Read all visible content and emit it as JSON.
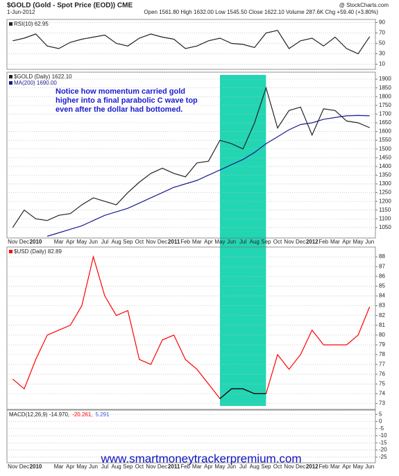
{
  "header": {
    "title": "$GOLD (Gold - Spot Price (EOD)) CME",
    "date": "1-Jun-2012",
    "source": "@ StockCharts.com",
    "quote": "Open 1561.80 High 1632.00 Low 1545.50 Close 1622.10 Volume 287.6K Chg +59.40 (+3.80%)"
  },
  "chart_data": [
    {
      "type": "line",
      "ylim": [
        0,
        96
      ],
      "yticks": [
        10,
        30,
        50,
        70,
        90
      ],
      "grid": true,
      "series": [
        {
          "name": "RSI(10) 62.95",
          "color": "#222222",
          "values": [
            55,
            60,
            68,
            45,
            40,
            52,
            58,
            62,
            66,
            50,
            45,
            60,
            68,
            62,
            58,
            40,
            45,
            55,
            60,
            50,
            48,
            42,
            70,
            75,
            40,
            55,
            60,
            45,
            62,
            40,
            30,
            62.95
          ]
        }
      ]
    },
    {
      "type": "line",
      "ylim": [
        990,
        1940
      ],
      "yticks": [
        1050,
        1100,
        1150,
        1200,
        1250,
        1300,
        1350,
        1400,
        1450,
        1500,
        1550,
        1600,
        1650,
        1700,
        1750,
        1800,
        1850,
        1900
      ],
      "grid": true,
      "categories": [
        "Nov",
        "Dec",
        "2010",
        null,
        "Mar",
        "Apr",
        "May",
        "Jun",
        "Jul",
        "Aug",
        "Sep",
        "Oct",
        "Nov",
        "Dec",
        "2011",
        "Feb",
        "Mar",
        "Apr",
        "May",
        "Jun",
        "Jul",
        "Aug",
        "Sep",
        "Oct",
        "Nov",
        "Dec",
        "2012",
        "Feb",
        "Mar",
        "Apr",
        "May",
        "Jun"
      ],
      "highlight": {
        "from": 18,
        "to": 22,
        "color": "#22d6b4"
      },
      "annotation": [
        "Notice how momentum carried gold",
        "higher into a final parabolic C wave top",
        "even after the dollar had bottomed."
      ],
      "series": [
        {
          "name": "$GOLD (Daily) 1622.10",
          "color": "#222222",
          "values": [
            1050,
            1150,
            1100,
            1090,
            1120,
            1130,
            1180,
            1220,
            1200,
            1180,
            1250,
            1310,
            1360,
            1390,
            1360,
            1340,
            1420,
            1430,
            1550,
            1530,
            1500,
            1650,
            1850,
            1620,
            1720,
            1740,
            1580,
            1730,
            1720,
            1660,
            1650,
            1622
          ]
        },
        {
          "name": "MA(200) 1690.00",
          "color": "#1a1a8c",
          "values": [
            null,
            null,
            null,
            1000,
            1020,
            1040,
            1060,
            1090,
            1120,
            1140,
            1160,
            1190,
            1220,
            1250,
            1280,
            1300,
            1320,
            1350,
            1380,
            1410,
            1440,
            1480,
            1530,
            1570,
            1610,
            1640,
            1650,
            1670,
            1680,
            1690,
            1692,
            1690
          ]
        }
      ]
    },
    {
      "type": "line",
      "ylim": [
        72.4,
        89
      ],
      "yticks": [
        73,
        74,
        75,
        76,
        77,
        78,
        79,
        80,
        81,
        82,
        83,
        84,
        85,
        86,
        87,
        88
      ],
      "grid": true,
      "highlight_color": "#000000",
      "series": [
        {
          "name": "$USD (Daily) 82.89",
          "color": "#ff0000",
          "values": [
            75.5,
            74.5,
            77.5,
            80,
            80.5,
            81,
            83,
            88,
            84,
            82,
            82.5,
            77.5,
            77,
            79.5,
            80,
            77.5,
            76.5,
            75,
            73.5,
            74.5,
            74.5,
            74,
            74,
            78,
            76.5,
            78,
            80.5,
            79,
            79,
            79,
            80,
            82.89
          ]
        }
      ]
    },
    {
      "type": "line",
      "ylim": [
        -29,
        8
      ],
      "yticks": [
        5,
        0,
        -5,
        -10,
        -15,
        -20,
        -25
      ],
      "grid": true,
      "legend": [
        {
          "text": "MACD(12,26,9) -14.970,",
          "color": "#222222"
        },
        {
          "text": "-20.261,",
          "color": "#ff0000"
        },
        {
          "text": "5.291",
          "color": "#3b5bd6"
        }
      ],
      "categories": [
        "Nov",
        "Dec",
        "2010",
        null,
        "Mar",
        "Apr",
        "May",
        "Jun",
        "Jul",
        "Aug",
        "Sep",
        "Oct",
        "Nov",
        "Dec",
        "2011",
        "Feb",
        "Mar",
        "Apr",
        "May",
        "Jun",
        "Jul",
        "Aug",
        "Sep",
        "Oct",
        "Nov",
        "Dec",
        "2012",
        "Feb",
        "Mar",
        "Apr",
        "May",
        "Jun"
      ],
      "series": []
    }
  ],
  "footer": {
    "url": "www.smartmoneytrackerpremium.com"
  }
}
